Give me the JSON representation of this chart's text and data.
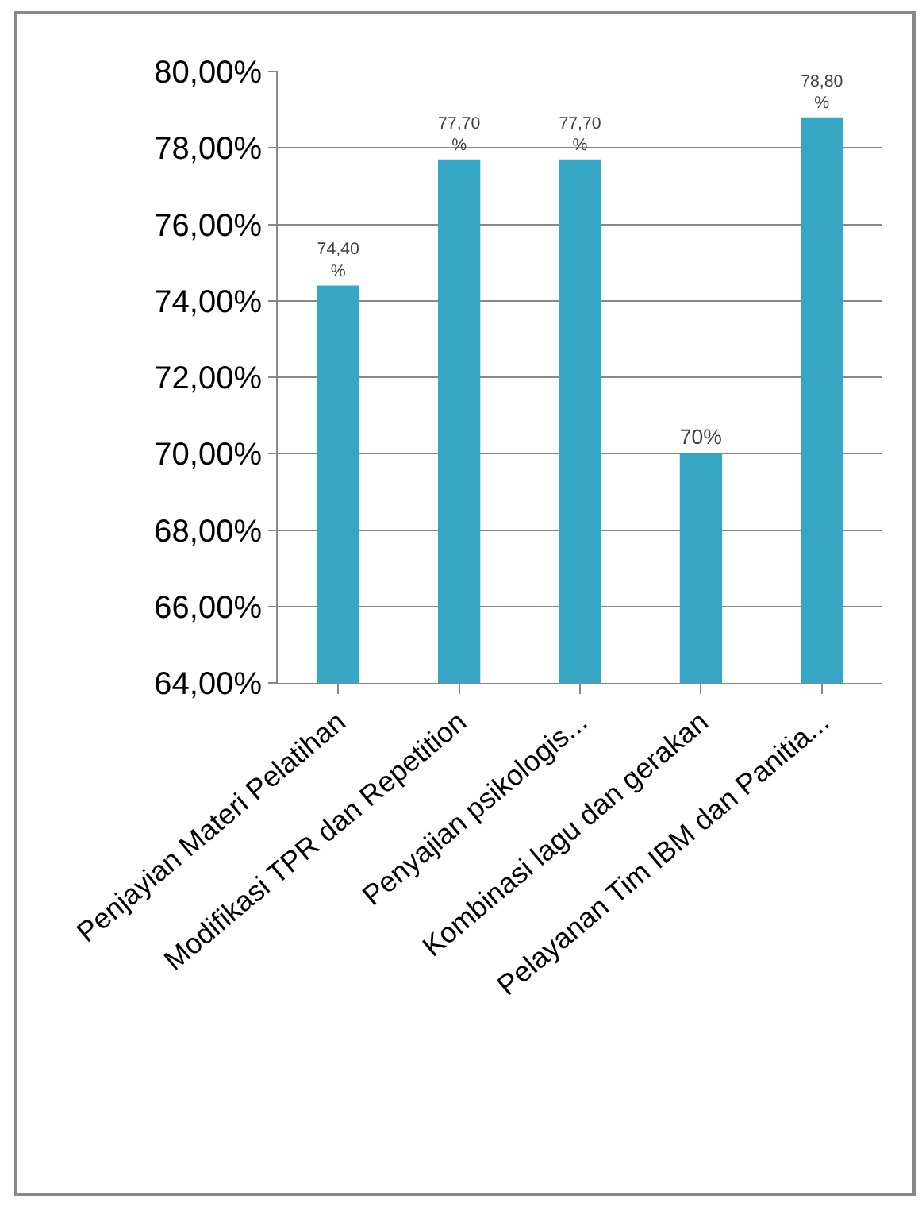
{
  "chart_data": {
    "type": "bar",
    "categories": [
      "Penjayian Materi Pelatihan",
      "Modifikasi TPR dan Repetition",
      "Penyajian psikologis...",
      "Kombinasi lagu dan gerakan",
      "Pelayanan Tim IBM dan Panitia..."
    ],
    "values": [
      74.4,
      77.7,
      77.7,
      70,
      78.8
    ],
    "value_labels": [
      "74,40 %",
      "77,70 %",
      "77,70 %",
      "70%",
      "78,80 %"
    ],
    "color": "#35a6c4",
    "ylim": [
      64,
      80
    ],
    "yticks": [
      {
        "value": 64,
        "label": "64,00%"
      },
      {
        "value": 66,
        "label": "66,00%"
      },
      {
        "value": 68,
        "label": "68,00%"
      },
      {
        "value": 70,
        "label": "70,00%"
      },
      {
        "value": 72,
        "label": "72,00%"
      },
      {
        "value": 74,
        "label": "74,00%"
      },
      {
        "value": 76,
        "label": "76,00%"
      },
      {
        "value": 78,
        "label": "78,00%"
      },
      {
        "value": 80,
        "label": "80,00%"
      }
    ],
    "grid": "y"
  }
}
